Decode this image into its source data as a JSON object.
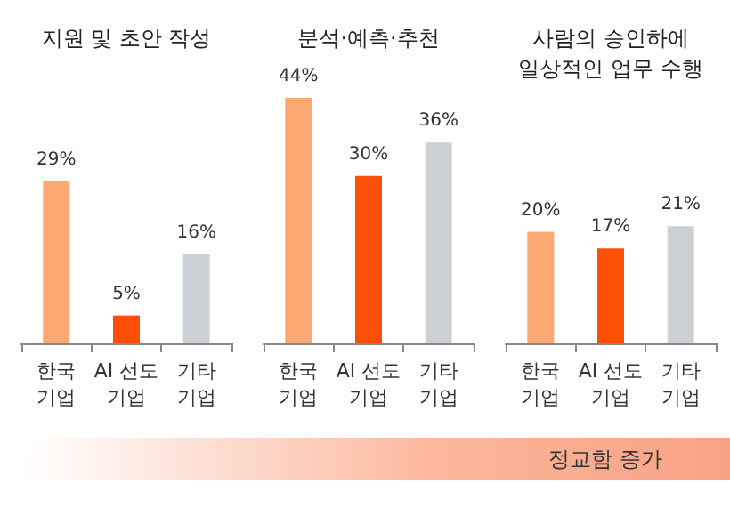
{
  "chart_data": [
    {
      "type": "bar",
      "title": "지원 및 초안 작성",
      "categories": [
        "한국\n기업",
        "AI 선도\n기업",
        "기타\n기업"
      ],
      "values": [
        29,
        5,
        16
      ],
      "colors": [
        "#fca872",
        "#fc5008",
        "#ccd0d5"
      ],
      "value_labels": [
        "29%",
        "5%",
        "16%"
      ]
    },
    {
      "type": "bar",
      "title": "분석·예측·추천",
      "categories": [
        "한국\n기업",
        "AI 선도\n기업",
        "기타\n기업"
      ],
      "values": [
        44,
        30,
        36
      ],
      "colors": [
        "#fca872",
        "#fc5008",
        "#ccd0d5"
      ],
      "value_labels": [
        "44%",
        "30%",
        "36%"
      ]
    },
    {
      "type": "bar",
      "title": "사람의 승인하에\n일상적인 업무 수행",
      "categories": [
        "한국\n기업",
        "AI 선도\n기업",
        "기타\n기업"
      ],
      "values": [
        20,
        17,
        21
      ],
      "colors": [
        "#fca872",
        "#fc5008",
        "#ccd0d5"
      ],
      "value_labels": [
        "20%",
        "17%",
        "21%"
      ],
      "annotations": [
        "정교함 증가"
      ]
    }
  ]
}
